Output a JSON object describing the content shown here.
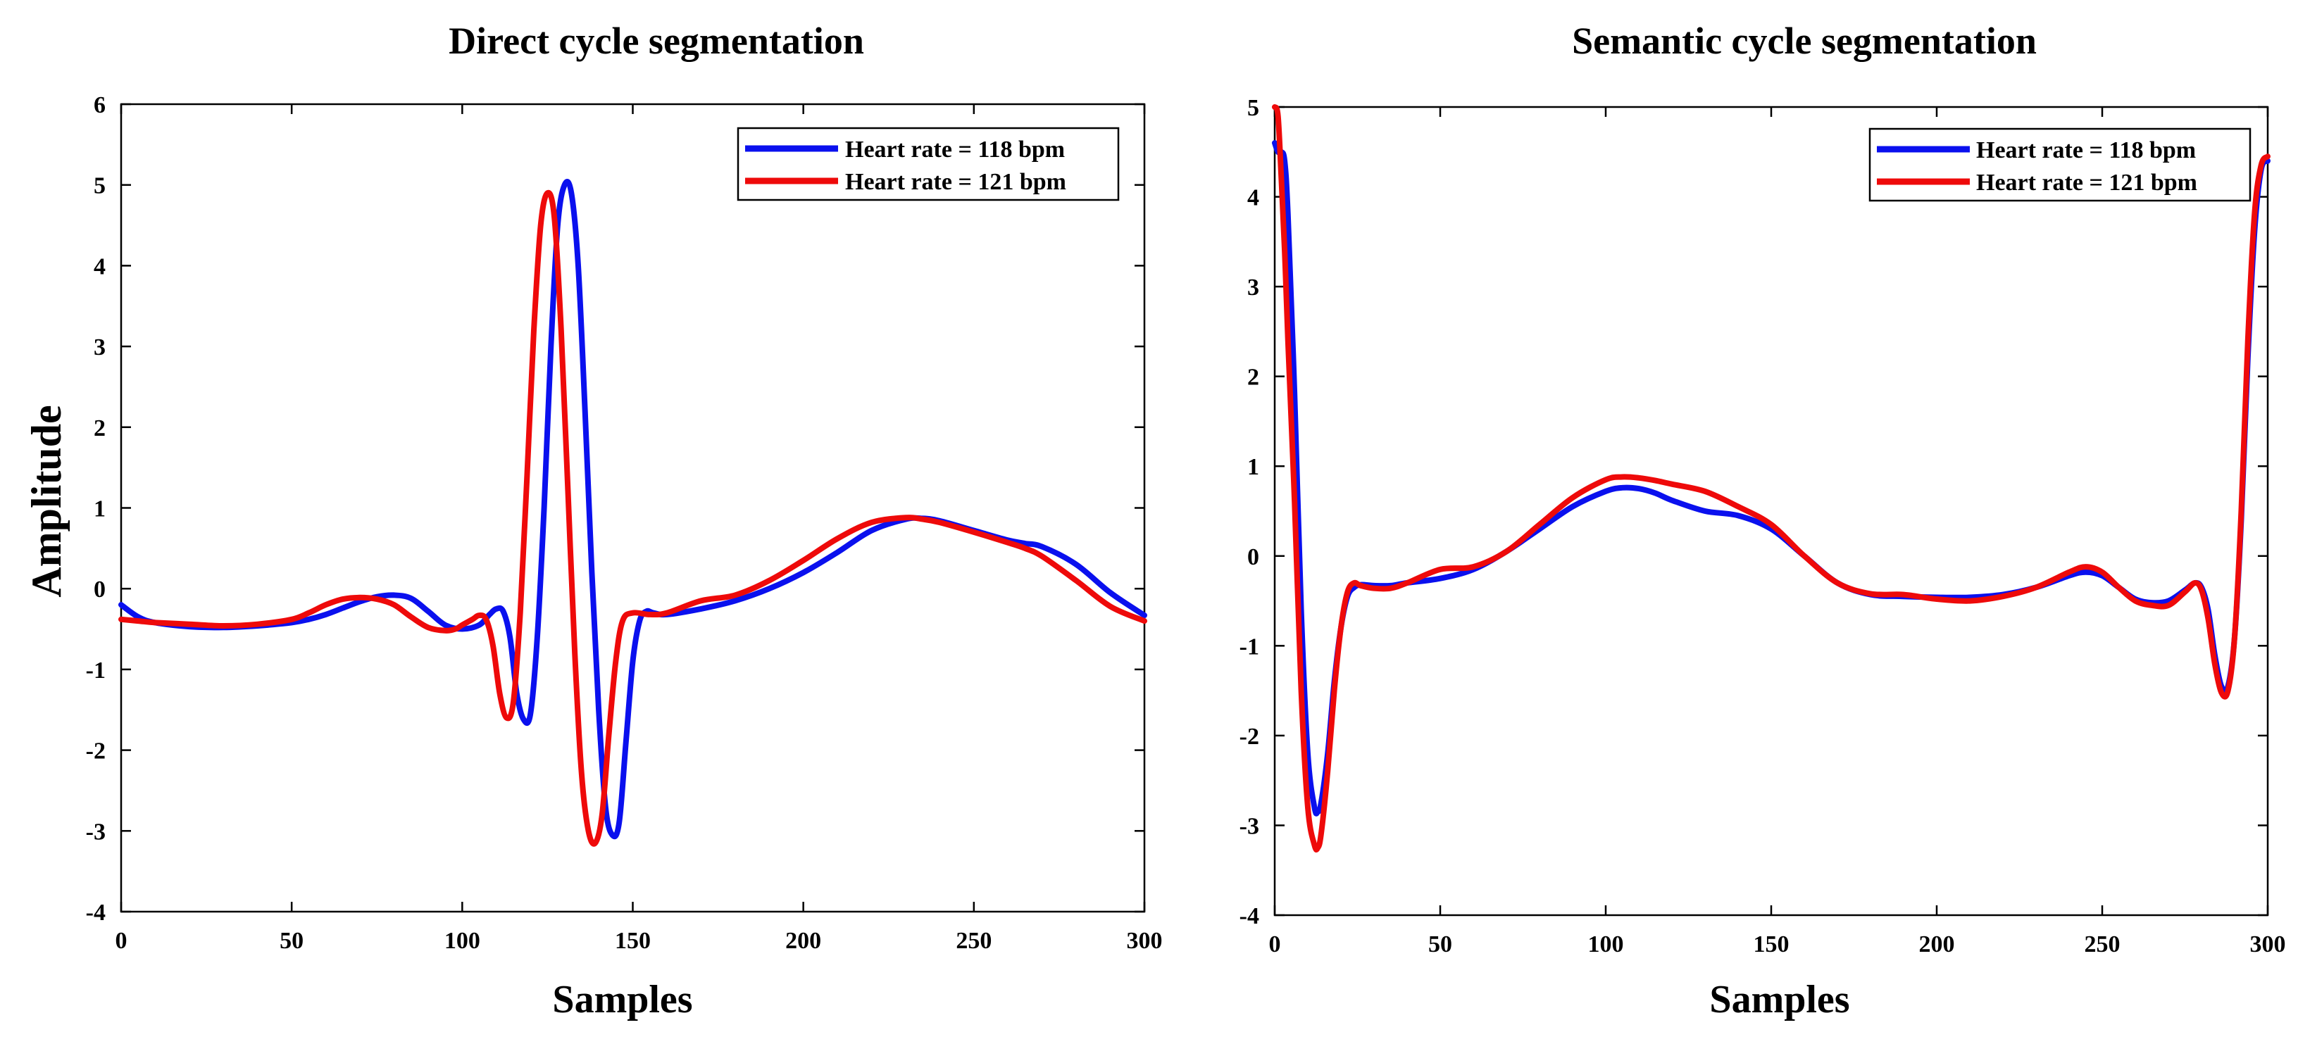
{
  "shared": {
    "ylabel": "Amplitude"
  },
  "chart_data": [
    {
      "type": "line",
      "title": "Direct cycle segmentation",
      "xlabel": "Samples",
      "ylabel": "Amplitude",
      "xlim": [
        0,
        300
      ],
      "ylim": [
        -4,
        6
      ],
      "xticks": [
        "0",
        "50",
        "100",
        "150",
        "200",
        "250",
        "300"
      ],
      "yticks": [
        "-4",
        "-3",
        "-2",
        "-1",
        "0",
        "1",
        "2",
        "3",
        "4",
        "5",
        "6"
      ],
      "grid": false,
      "legend_position": "top-right",
      "series": [
        {
          "name": "Heart rate = 118 bpm",
          "color": "#0a10ee",
          "x": [
            0,
            5,
            10,
            20,
            30,
            40,
            50,
            55,
            60,
            65,
            70,
            75,
            80,
            85,
            90,
            95,
            100,
            105,
            108,
            110,
            112,
            114,
            116,
            118,
            120,
            122,
            124,
            126,
            128,
            130,
            132,
            134,
            136,
            138,
            140,
            142,
            144,
            146,
            148,
            150,
            152,
            154,
            156,
            160,
            170,
            180,
            190,
            200,
            210,
            220,
            230,
            235,
            240,
            250,
            260,
            265,
            270,
            280,
            290,
            300
          ],
          "y": [
            -0.2,
            -0.35,
            -0.42,
            -0.47,
            -0.48,
            -0.46,
            -0.42,
            -0.38,
            -0.32,
            -0.24,
            -0.16,
            -0.1,
            -0.08,
            -0.12,
            -0.28,
            -0.45,
            -0.5,
            -0.45,
            -0.32,
            -0.25,
            -0.28,
            -0.6,
            -1.3,
            -1.62,
            -1.55,
            -0.6,
            1.0,
            3.0,
            4.5,
            5.0,
            4.9,
            4.0,
            2.2,
            0.2,
            -1.5,
            -2.7,
            -3.05,
            -2.9,
            -1.9,
            -0.9,
            -0.4,
            -0.28,
            -0.3,
            -0.32,
            -0.25,
            -0.15,
            0.0,
            0.2,
            0.45,
            0.72,
            0.86,
            0.87,
            0.84,
            0.72,
            0.6,
            0.56,
            0.52,
            0.3,
            -0.05,
            -0.33
          ]
        },
        {
          "name": "Heart rate = 121 bpm",
          "color": "#ee0a0a",
          "x": [
            0,
            5,
            10,
            20,
            30,
            40,
            50,
            55,
            60,
            65,
            70,
            75,
            80,
            85,
            90,
            95,
            98,
            100,
            103,
            105,
            107,
            109,
            111,
            113,
            115,
            117,
            119,
            121,
            123,
            125,
            127,
            129,
            131,
            133,
            135,
            137,
            139,
            141,
            143,
            145,
            147,
            150,
            155,
            160,
            170,
            180,
            190,
            200,
            210,
            220,
            230,
            235,
            240,
            250,
            260,
            265,
            270,
            280,
            290,
            300
          ],
          "y": [
            -0.38,
            -0.4,
            -0.42,
            -0.44,
            -0.46,
            -0.44,
            -0.38,
            -0.3,
            -0.2,
            -0.13,
            -0.11,
            -0.13,
            -0.2,
            -0.35,
            -0.48,
            -0.52,
            -0.5,
            -0.45,
            -0.38,
            -0.33,
            -0.38,
            -0.7,
            -1.3,
            -1.6,
            -1.4,
            -0.3,
            1.4,
            3.2,
            4.5,
            4.9,
            4.6,
            3.2,
            1.2,
            -0.8,
            -2.3,
            -3.0,
            -3.15,
            -2.8,
            -1.8,
            -0.9,
            -0.4,
            -0.3,
            -0.32,
            -0.3,
            -0.15,
            -0.08,
            0.1,
            0.35,
            0.62,
            0.82,
            0.88,
            0.86,
            0.82,
            0.7,
            0.57,
            0.5,
            0.4,
            0.1,
            -0.22,
            -0.4
          ]
        }
      ]
    },
    {
      "type": "line",
      "title": "Semantic cycle segmentation",
      "xlabel": "Samples",
      "ylabel": "",
      "xlim": [
        0,
        300
      ],
      "ylim": [
        -4,
        5
      ],
      "xticks": [
        "0",
        "50",
        "100",
        "150",
        "200",
        "250",
        "300"
      ],
      "yticks": [
        "-4",
        "-3",
        "-2",
        "-1",
        "0",
        "1",
        "2",
        "3",
        "4",
        "5"
      ],
      "grid": false,
      "legend_position": "top-right",
      "series": [
        {
          "name": "Heart rate = 118 bpm",
          "color": "#0a10ee",
          "x": [
            0,
            1,
            2,
            3,
            4,
            6,
            8,
            10,
            12,
            13,
            14,
            16,
            18,
            20,
            22,
            24,
            26,
            30,
            35,
            40,
            50,
            60,
            70,
            80,
            90,
            100,
            105,
            110,
            115,
            120,
            130,
            140,
            150,
            160,
            170,
            180,
            190,
            200,
            210,
            220,
            230,
            240,
            245,
            250,
            255,
            260,
            265,
            270,
            275,
            278,
            280,
            282,
            284,
            286,
            288,
            290,
            292,
            294,
            296,
            298,
            300
          ],
          "y": [
            4.6,
            4.5,
            4.5,
            4.4,
            3.8,
            1.8,
            -0.6,
            -2.2,
            -2.8,
            -2.85,
            -2.75,
            -2.2,
            -1.4,
            -0.8,
            -0.45,
            -0.35,
            -0.32,
            -0.33,
            -0.33,
            -0.3,
            -0.25,
            -0.15,
            0.05,
            0.3,
            0.55,
            0.72,
            0.76,
            0.75,
            0.7,
            0.62,
            0.5,
            0.45,
            0.3,
            0.0,
            -0.3,
            -0.43,
            -0.45,
            -0.46,
            -0.46,
            -0.43,
            -0.35,
            -0.22,
            -0.18,
            -0.22,
            -0.35,
            -0.48,
            -0.52,
            -0.5,
            -0.38,
            -0.3,
            -0.35,
            -0.6,
            -1.1,
            -1.45,
            -1.45,
            -0.9,
            0.4,
            2.2,
            3.6,
            4.3,
            4.4
          ]
        },
        {
          "name": "Heart rate = 121 bpm",
          "color": "#ee0a0a",
          "x": [
            0,
            1,
            2,
            3,
            4,
            6,
            8,
            10,
            12,
            13,
            14,
            16,
            18,
            20,
            22,
            24,
            26,
            30,
            35,
            40,
            50,
            60,
            70,
            80,
            90,
            100,
            105,
            110,
            115,
            120,
            130,
            140,
            150,
            160,
            170,
            180,
            190,
            200,
            210,
            220,
            230,
            240,
            245,
            250,
            255,
            260,
            265,
            270,
            275,
            278,
            280,
            282,
            284,
            286,
            288,
            290,
            292,
            294,
            296,
            298,
            300
          ],
          "y": [
            5.0,
            4.9,
            4.2,
            3.4,
            2.4,
            0.6,
            -1.5,
            -2.8,
            -3.22,
            -3.25,
            -3.1,
            -2.4,
            -1.5,
            -0.8,
            -0.4,
            -0.3,
            -0.33,
            -0.36,
            -0.36,
            -0.3,
            -0.15,
            -0.12,
            0.05,
            0.35,
            0.65,
            0.85,
            0.88,
            0.87,
            0.84,
            0.8,
            0.72,
            0.55,
            0.35,
            0.0,
            -0.3,
            -0.42,
            -0.43,
            -0.48,
            -0.5,
            -0.45,
            -0.35,
            -0.18,
            -0.12,
            -0.18,
            -0.35,
            -0.5,
            -0.55,
            -0.55,
            -0.4,
            -0.3,
            -0.38,
            -0.7,
            -1.2,
            -1.52,
            -1.5,
            -0.9,
            0.5,
            2.4,
            3.8,
            4.35,
            4.45
          ]
        }
      ]
    }
  ]
}
